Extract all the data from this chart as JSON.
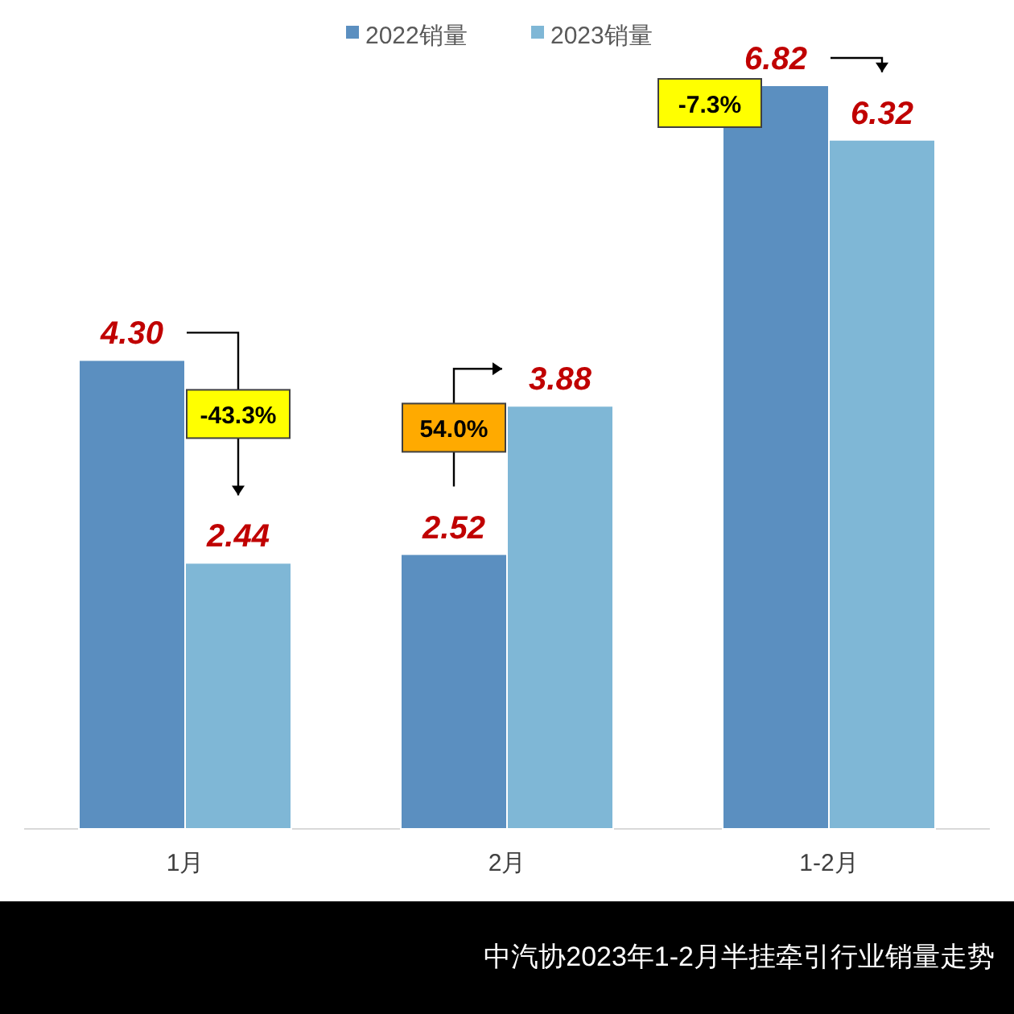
{
  "chart_data": {
    "type": "bar",
    "title": "中汽协2023年1-2月半挂牵引行业销量走势",
    "categories": [
      "1月",
      "2月",
      "1-2月"
    ],
    "series": [
      {
        "name": "2022销量",
        "color": "#5b8fc0",
        "values": [
          4.3,
          2.52,
          6.82
        ],
        "value_labels": [
          "4.30",
          "2.52",
          "6.82"
        ]
      },
      {
        "name": "2023销量",
        "color": "#7fb7d6",
        "values": [
          2.44,
          3.88,
          6.32
        ],
        "value_labels": [
          "2.44",
          "3.88",
          "6.32"
        ]
      }
    ],
    "legend": "top",
    "annotations": [
      "-43.3%",
      "54.0%",
      "-7.3%"
    ]
  }
}
